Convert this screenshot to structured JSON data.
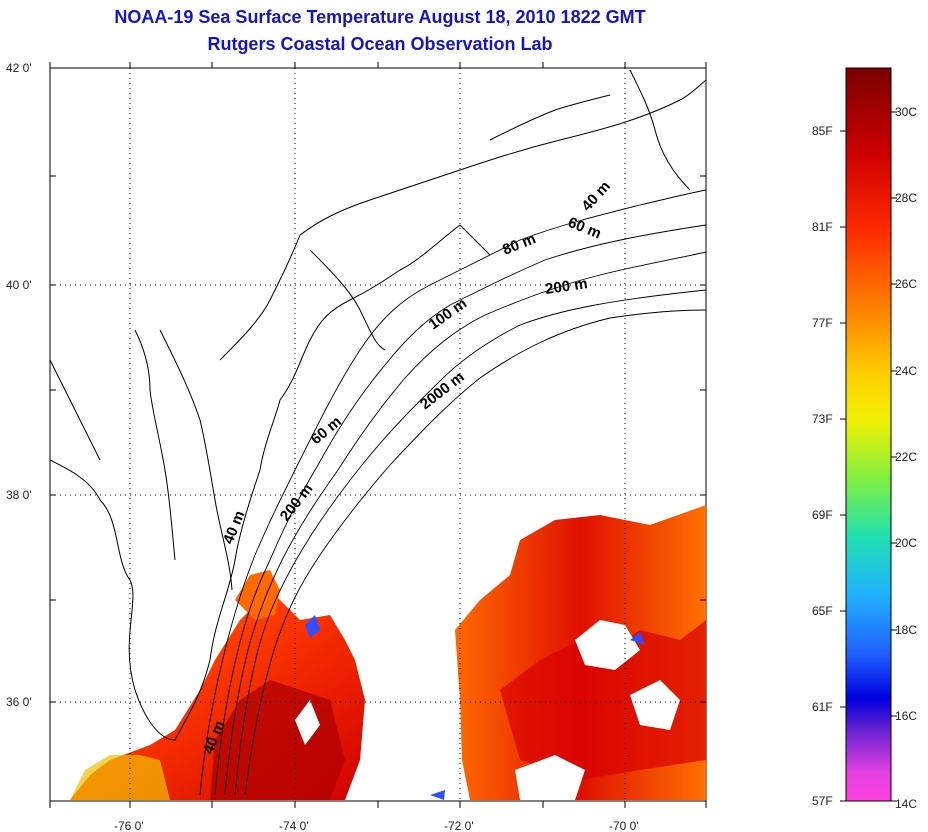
{
  "title": {
    "line1": "NOAA-19 Sea Surface Temperature August 18, 2010 1822 GMT",
    "line2": "Rutgers Coastal Ocean Observation Lab"
  },
  "map": {
    "lat_labels": [
      {
        "text": "42 0'"
      },
      {
        "text": "40 0'"
      },
      {
        "text": "38 0'"
      },
      {
        "text": "36 0'"
      }
    ],
    "lon_labels": [
      {
        "text": "-76 0'"
      },
      {
        "text": "-74 0'"
      },
      {
        "text": "-72 0'"
      },
      {
        "text": "-70 0'"
      }
    ],
    "contour_labels": [
      {
        "text": "40 m",
        "rotate": -48
      },
      {
        "text": "60 m",
        "rotate": -22
      },
      {
        "text": "80 m",
        "rotate": -22
      },
      {
        "text": "200 m",
        "rotate": -8
      },
      {
        "text": "100 m",
        "rotate": -35
      },
      {
        "text": "2000 m",
        "rotate": -38
      },
      {
        "text": "60 m",
        "rotate": -40
      },
      {
        "text": "200 m",
        "rotate": -52
      },
      {
        "text": "40 m",
        "rotate": -68
      },
      {
        "text": "40 m",
        "rotate": -68
      }
    ]
  },
  "colorbar": {
    "fahrenheit": [
      "85F",
      "81F",
      "77F",
      "73F",
      "69F",
      "65F",
      "61F",
      "57F"
    ],
    "celsius": [
      "30C",
      "28C",
      "26C",
      "24C",
      "22C",
      "20C",
      "18C",
      "16C",
      "14C"
    ],
    "colors": [
      "#8b0000",
      "#e00000",
      "#ff7a00",
      "#ffcc00",
      "#e8f000",
      "#80ff40",
      "#20e0c0",
      "#20a8ff",
      "#2040ff",
      "#0000e0",
      "#8020c0",
      "#ff40e0"
    ]
  }
}
